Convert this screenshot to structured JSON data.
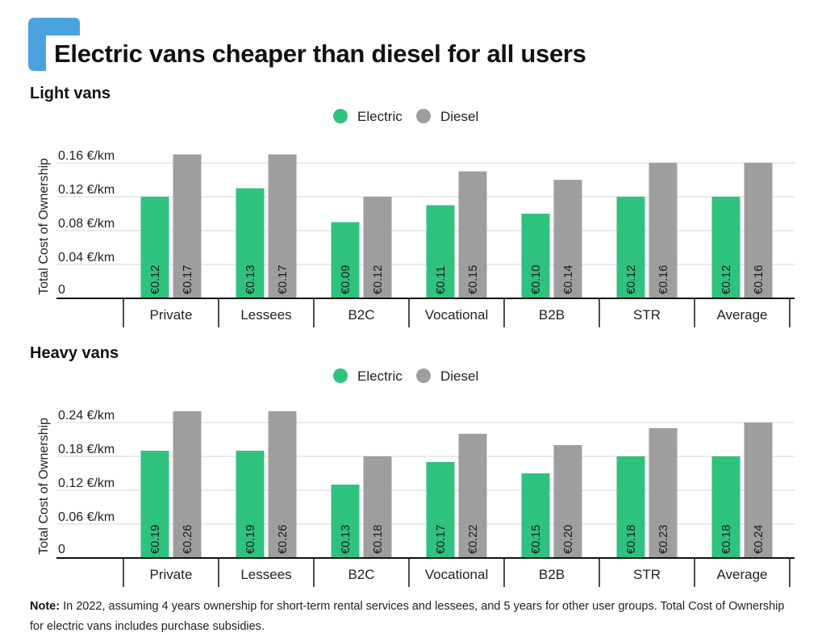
{
  "title": "Electric vans cheaper than diesel for all users",
  "colors": {
    "electric": "#2ec27e",
    "diesel": "#9e9e9e",
    "accent": "#4aa3df",
    "grid": "#d6d6d6",
    "axis": "#111111"
  },
  "note": {
    "label": "Note:",
    "text": "In 2022, assuming 4 years ownership for short-term rental services and lessees, and 5 years for other user groups. Total Cost of Ownership for electric vans includes purchase subsidies."
  },
  "chart_data": [
    {
      "type": "bar",
      "title": "Light vans",
      "ylabel": "Total Cost of Ownership",
      "xlabel": "",
      "ylim": [
        0,
        0.16
      ],
      "yticks": [
        0,
        0.04,
        0.08,
        0.12,
        0.16
      ],
      "ytick_labels": [
        "0",
        "0.04 €/km",
        "0.08 €/km",
        "0.12 €/km",
        "0.16 €/km"
      ],
      "legend": "top-center",
      "categories": [
        "Private",
        "Lessees",
        "B2C",
        "Vocational",
        "B2B",
        "STR",
        "Average"
      ],
      "series": [
        {
          "name": "Electric",
          "values": [
            0.12,
            0.13,
            0.09,
            0.11,
            0.1,
            0.12,
            0.12
          ],
          "labels": [
            "€0.12",
            "€0.13",
            "€0.09",
            "€0.11",
            "€0.10",
            "€0.12",
            "€0.12"
          ]
        },
        {
          "name": "Diesel",
          "values": [
            0.17,
            0.17,
            0.12,
            0.15,
            0.14,
            0.16,
            0.16
          ],
          "labels": [
            "€0.17",
            "€0.17",
            "€0.12",
            "€0.15",
            "€0.14",
            "€0.16",
            "€0.16"
          ]
        }
      ]
    },
    {
      "type": "bar",
      "title": "Heavy vans",
      "ylabel": "Total Cost of Ownership",
      "xlabel": "",
      "ylim": [
        0,
        0.24
      ],
      "yticks": [
        0,
        0.06,
        0.12,
        0.18,
        0.24
      ],
      "ytick_labels": [
        "0",
        "0.06 €/km",
        "0.12 €/km",
        "0.18 €/km",
        "0.24 €/km"
      ],
      "legend": "top-center",
      "categories": [
        "Private",
        "Lessees",
        "B2C",
        "Vocational",
        "B2B",
        "STR",
        "Average"
      ],
      "series": [
        {
          "name": "Electric",
          "values": [
            0.19,
            0.19,
            0.13,
            0.17,
            0.15,
            0.18,
            0.18
          ],
          "labels": [
            "€0.19",
            "€0.19",
            "€0.13",
            "€0.17",
            "€0.15",
            "€0.18",
            "€0.18"
          ]
        },
        {
          "name": "Diesel",
          "values": [
            0.26,
            0.26,
            0.18,
            0.22,
            0.2,
            0.23,
            0.24
          ],
          "labels": [
            "€0.26",
            "€0.26",
            "€0.18",
            "€0.22",
            "€0.20",
            "€0.23",
            "€0.24"
          ]
        }
      ]
    }
  ]
}
